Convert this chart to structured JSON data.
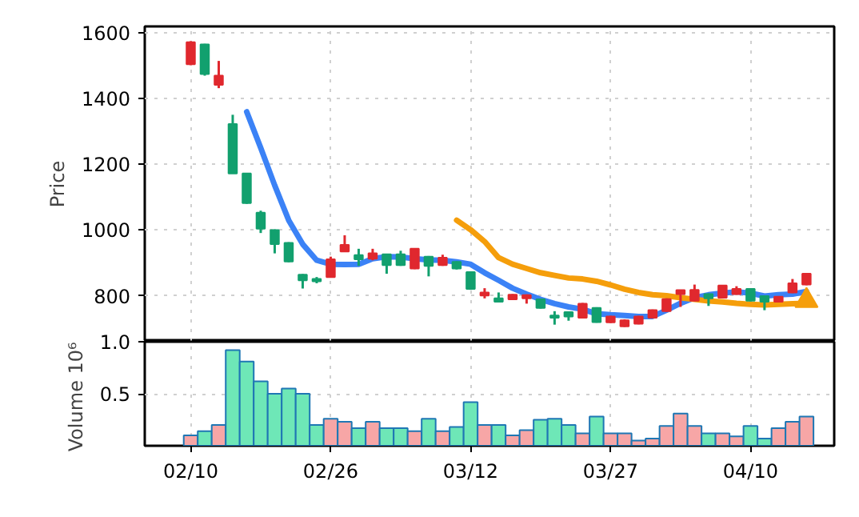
{
  "chart_data": [
    {
      "type": "candlestick",
      "ylabel": "Price",
      "categories": [
        null,
        null,
        null,
        null,
        null,
        null,
        null,
        null,
        null,
        null,
        null,
        null,
        null,
        null,
        null,
        null,
        null,
        null,
        null,
        null,
        null,
        null,
        null,
        null,
        null,
        null,
        null,
        null,
        null,
        null,
        null,
        null,
        null,
        null,
        null,
        null,
        null,
        null,
        null,
        null,
        null,
        null,
        null,
        null,
        null
      ],
      "ohlc": [
        [
          1572,
          1575,
          1502,
          1505
        ],
        [
          1475,
          1567,
          1470,
          1565
        ],
        [
          1470,
          1515,
          1432,
          1442
        ],
        [
          1172,
          1351,
          1172,
          1323
        ],
        [
          1082,
          1172,
          1080,
          1172
        ],
        [
          1004,
          1059,
          991,
          1053
        ],
        [
          957,
          1002,
          929,
          1000
        ],
        [
          904,
          963,
          902,
          961
        ],
        [
          847,
          866,
          822,
          864
        ],
        [
          844,
          857,
          838,
          851
        ],
        [
          911,
          919,
          855,
          857
        ],
        [
          955,
          984,
          933,
          935
        ],
        [
          911,
          943,
          891,
          924
        ],
        [
          929,
          943,
          908,
          913
        ],
        [
          893,
          928,
          867,
          926
        ],
        [
          893,
          937,
          891,
          926
        ],
        [
          943,
          945,
          881,
          883
        ],
        [
          891,
          921,
          859,
          919
        ],
        [
          916,
          925,
          891,
          893
        ],
        [
          883,
          905,
          880,
          903
        ],
        [
          821,
          874,
          818,
          872
        ],
        [
          810,
          823,
          792,
          801
        ],
        [
          782,
          810,
          780,
          792
        ],
        [
          803,
          805,
          787,
          789
        ],
        [
          802,
          804,
          776,
          792
        ],
        [
          763,
          791,
          761,
          789
        ],
        [
          733,
          753,
          712,
          740
        ],
        [
          737,
          752,
          724,
          750
        ],
        [
          776,
          778,
          731,
          733
        ],
        [
          720,
          765,
          718,
          763
        ],
        [
          737,
          739,
          717,
          719
        ],
        [
          725,
          728,
          705,
          707
        ],
        [
          737,
          739,
          713,
          715
        ],
        [
          756,
          758,
          731,
          733
        ],
        [
          790,
          792,
          751,
          753
        ],
        [
          817,
          818,
          766,
          805
        ],
        [
          818,
          834,
          783,
          785
        ],
        [
          792,
          807,
          769,
          805
        ],
        [
          831,
          833,
          792,
          794
        ],
        [
          821,
          829,
          803,
          805
        ],
        [
          785,
          823,
          783,
          821
        ],
        [
          782,
          801,
          756,
          799
        ],
        [
          797,
          799,
          780,
          782
        ],
        [
          838,
          851,
          808,
          810
        ],
        [
          867,
          869,
          832,
          834
        ]
      ],
      "colors": [
        "#e0282e",
        "#12a06e",
        "#e0282e",
        "#12a06e",
        "#12a06e",
        "#12a06e",
        "#12a06e",
        "#12a06e",
        "#12a06e",
        "#12a06e",
        "#e0282e",
        "#e0282e",
        "#12a06e",
        "#e0282e",
        "#12a06e",
        "#12a06e",
        "#e0282e",
        "#12a06e",
        "#e0282e",
        "#12a06e",
        "#12a06e",
        "#e0282e",
        "#12a06e",
        "#e0282e",
        "#e0282e",
        "#12a06e",
        "#12a06e",
        "#12a06e",
        "#e0282e",
        "#12a06e",
        "#e0282e",
        "#e0282e",
        "#e0282e",
        "#e0282e",
        "#e0282e",
        "#e0282e",
        "#e0282e",
        "#12a06e",
        "#e0282e",
        "#e0282e",
        "#12a06e",
        "#12a06e",
        "#e0282e",
        "#e0282e",
        "#e0282e"
      ],
      "series": [
        {
          "type": "line",
          "color": "#3b82f6",
          "values": [
            null,
            null,
            null,
            null,
            1360,
            1250,
            1136,
            1030,
            957,
            908,
            896,
            895,
            896,
            913,
            919,
            918,
            913,
            909,
            908,
            903,
            896,
            870,
            847,
            823,
            805,
            789,
            776,
            766,
            759,
            745,
            742,
            740,
            737,
            737,
            756,
            777,
            794,
            803,
            808,
            812,
            808,
            799,
            803,
            805,
            813
          ]
        },
        {
          "type": "line",
          "color": "#f59e0b",
          "values": [
            null,
            null,
            null,
            null,
            null,
            null,
            null,
            null,
            null,
            null,
            null,
            null,
            null,
            null,
            null,
            null,
            null,
            null,
            null,
            1030,
            1001,
            965,
            916,
            896,
            883,
            870,
            862,
            854,
            851,
            844,
            833,
            820,
            810,
            803,
            800,
            794,
            789,
            784,
            781,
            777,
            774,
            772,
            774,
            776,
            777
          ]
        },
        {
          "type": "scatter",
          "marker": "triangle",
          "color": "#f59e0b",
          "values": [
            null,
            null,
            null,
            null,
            null,
            null,
            null,
            null,
            null,
            null,
            null,
            null,
            null,
            null,
            null,
            null,
            null,
            null,
            null,
            null,
            null,
            null,
            null,
            null,
            null,
            null,
            null,
            null,
            null,
            null,
            null,
            null,
            null,
            null,
            null,
            null,
            null,
            null,
            null,
            null,
            null,
            null,
            null,
            null,
            785
          ]
        }
      ],
      "ylim": [
        660,
        1620
      ],
      "yticks": [
        800,
        1000,
        1200,
        1400,
        1600
      ],
      "tick_labels": "y",
      "grid": true
    },
    {
      "type": "bar",
      "ylabel": "Volume  10⁶",
      "categories": [
        "02/10",
        null,
        null,
        null,
        null,
        null,
        null,
        null,
        null,
        null,
        "02/26",
        null,
        null,
        null,
        null,
        null,
        null,
        null,
        null,
        null,
        "03/12",
        null,
        null,
        null,
        null,
        null,
        null,
        null,
        null,
        null,
        "03/27",
        null,
        null,
        null,
        null,
        null,
        null,
        null,
        null,
        null,
        "04/10",
        null,
        null,
        null,
        null
      ],
      "values": [
        0.1,
        0.14,
        0.2,
        0.92,
        0.81,
        0.62,
        0.5,
        0.55,
        0.5,
        0.2,
        0.26,
        0.23,
        0.17,
        0.23,
        0.17,
        0.17,
        0.14,
        0.26,
        0.14,
        0.18,
        0.42,
        0.2,
        0.2,
        0.1,
        0.15,
        0.25,
        0.26,
        0.2,
        0.12,
        0.28,
        0.12,
        0.12,
        0.05,
        0.07,
        0.19,
        0.31,
        0.19,
        0.12,
        0.12,
        0.09,
        0.19,
        0.07,
        0.17,
        0.23,
        0.28
      ],
      "colors": [
        "#f7a6a6",
        "#6ee7b7",
        "#f7a6a6",
        "#6ee7b7",
        "#6ee7b7",
        "#6ee7b7",
        "#6ee7b7",
        "#6ee7b7",
        "#6ee7b7",
        "#6ee7b7",
        "#f7a6a6",
        "#f7a6a6",
        "#6ee7b7",
        "#f7a6a6",
        "#6ee7b7",
        "#6ee7b7",
        "#f7a6a6",
        "#6ee7b7",
        "#f7a6a6",
        "#6ee7b7",
        "#6ee7b7",
        "#f7a6a6",
        "#6ee7b7",
        "#f7a6a6",
        "#f7a6a6",
        "#6ee7b7",
        "#6ee7b7",
        "#6ee7b7",
        "#f7a6a6",
        "#6ee7b7",
        "#f7a6a6",
        "#f7a6a6",
        "#f7a6a6",
        "#f7a6a6",
        "#f7a6a6",
        "#f7a6a6",
        "#f7a6a6",
        "#6ee7b7",
        "#f7a6a6",
        "#f7a6a6",
        "#6ee7b7",
        "#6ee7b7",
        "#f7a6a6",
        "#f7a6a6",
        "#f7a6a6"
      ],
      "ylim": [
        0,
        1.0
      ],
      "yticks": [
        0.5,
        {
          "value": 1.0,
          "label": "1.0"
        }
      ],
      "grid": true
    }
  ]
}
